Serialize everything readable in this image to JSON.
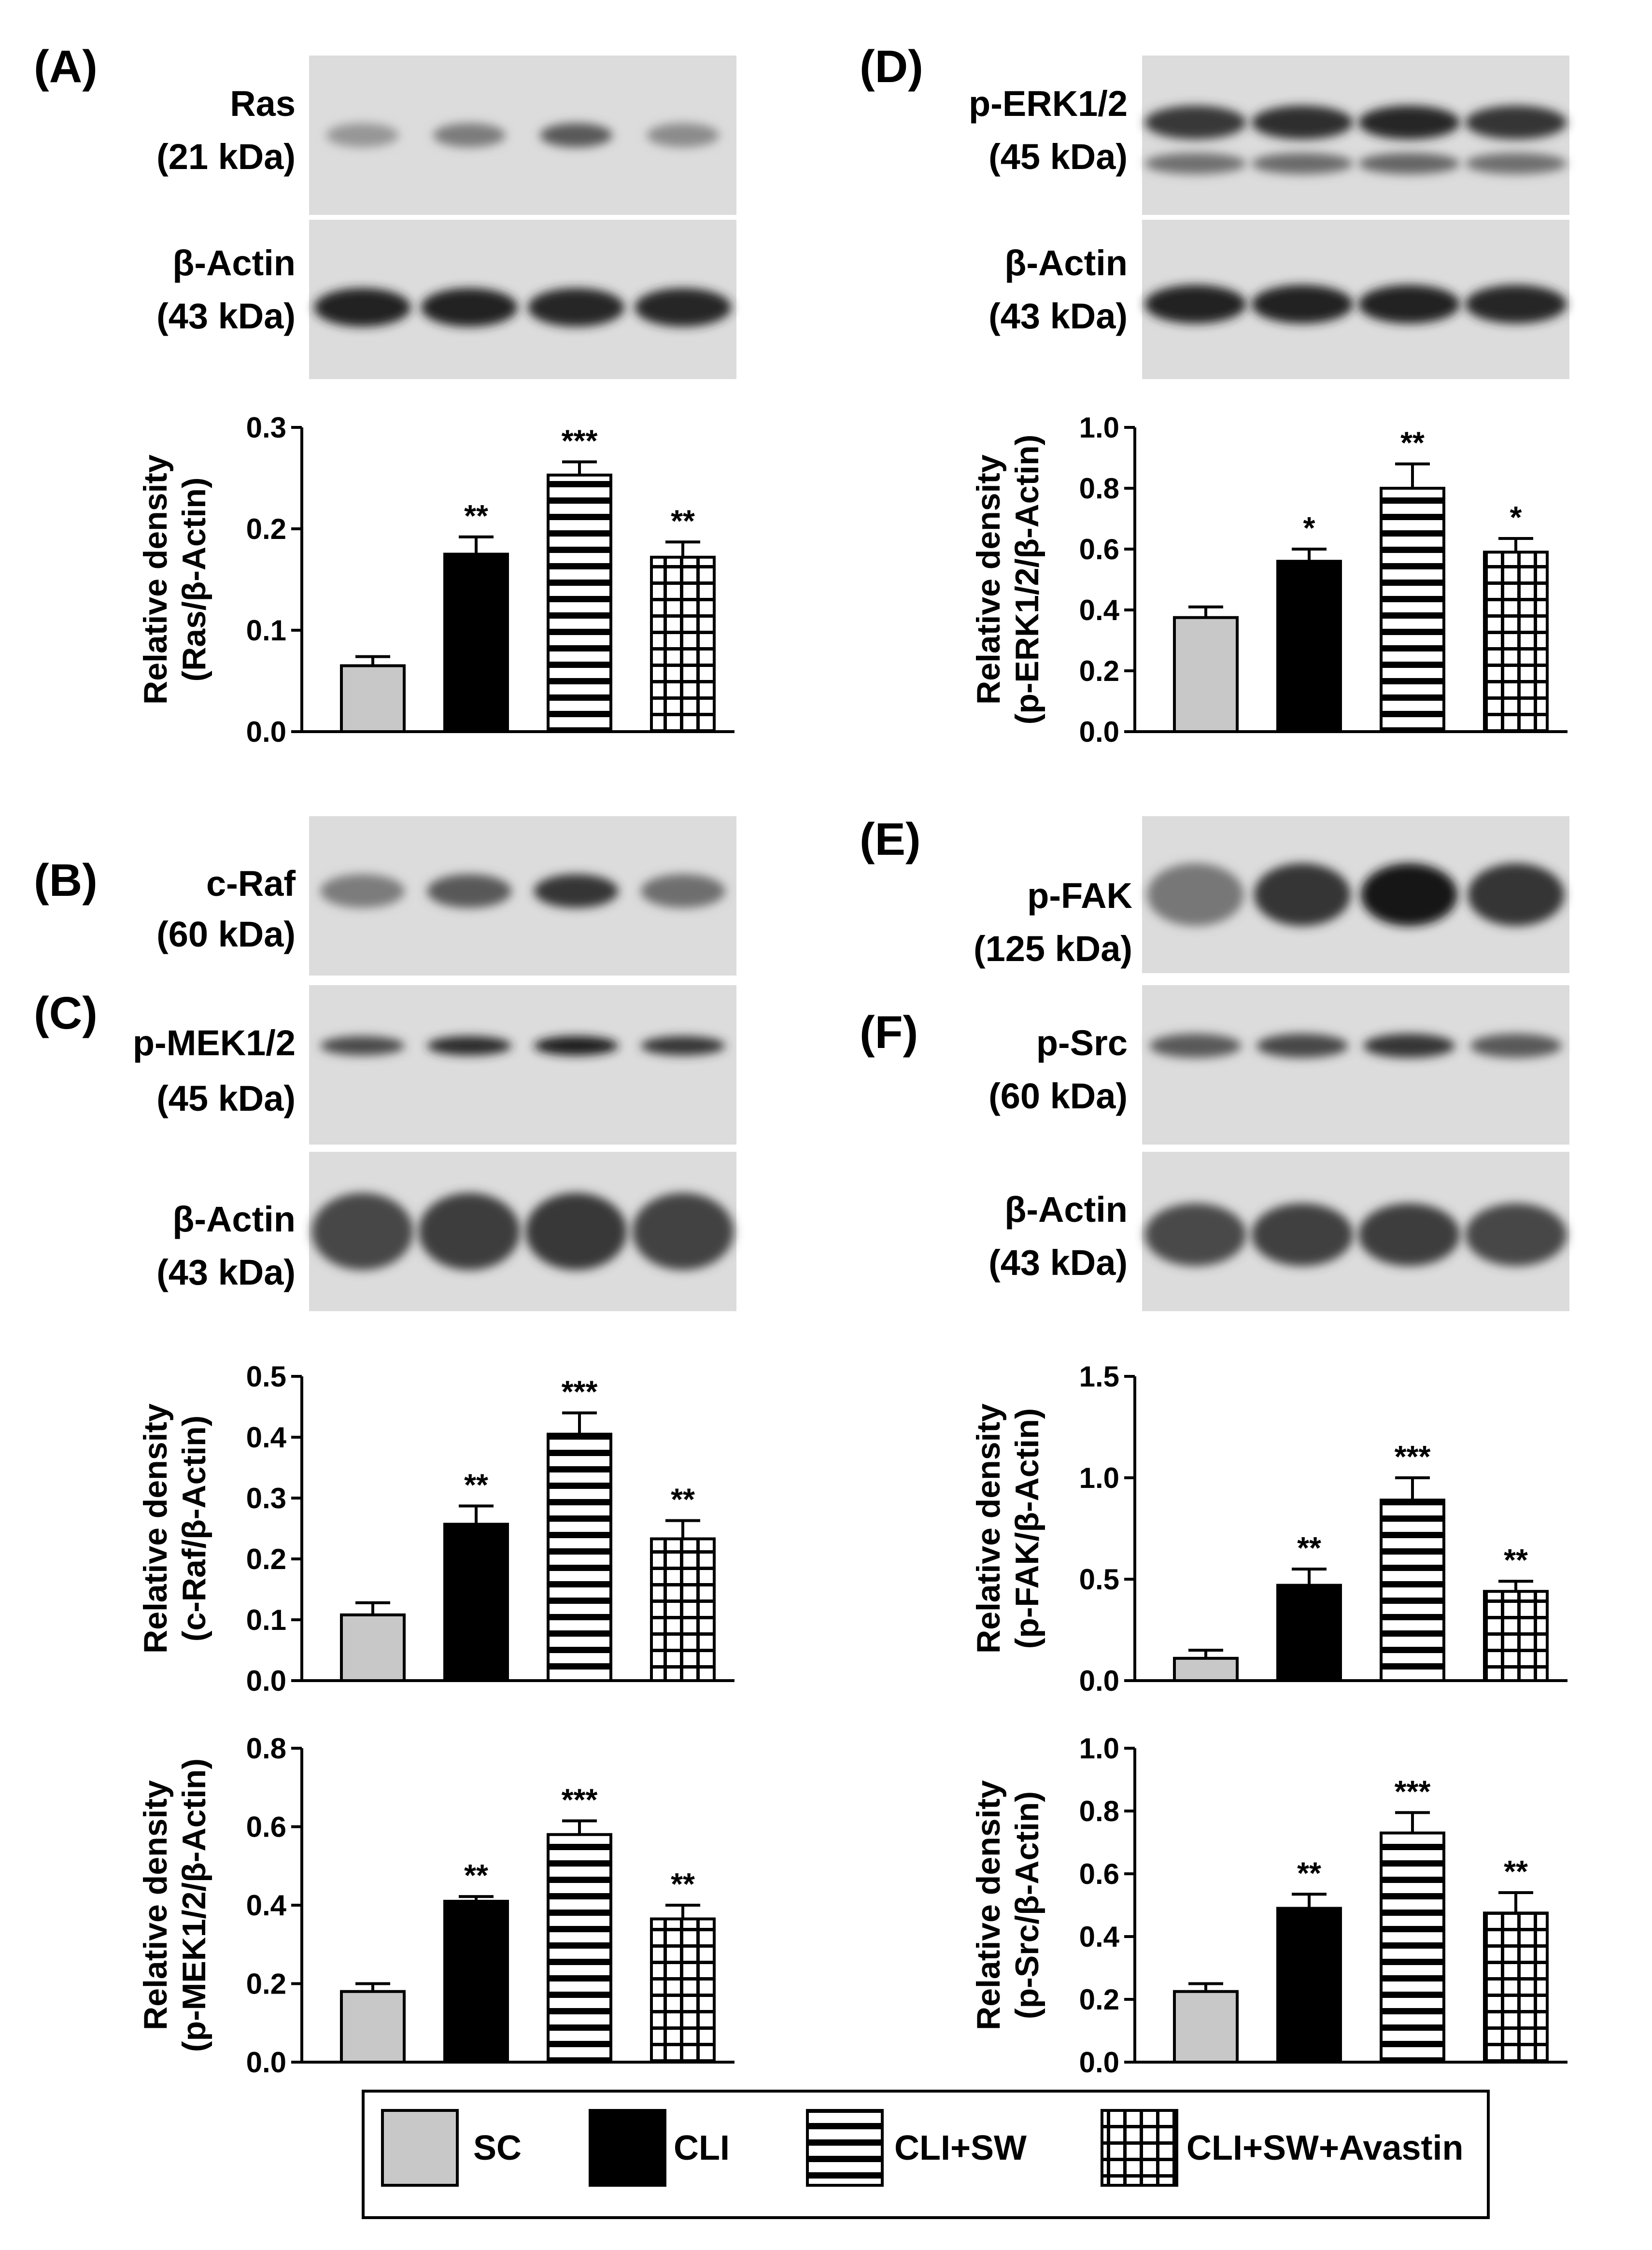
{
  "colors": {
    "SC": "#c8c8c8",
    "CLI": "#000000",
    "pattern_stroke": "#000000",
    "blot_background": "#dcdcdc"
  },
  "panels": [
    {
      "letter": "(A)"
    },
    {
      "letter": "(B)"
    },
    {
      "letter": "(C)"
    },
    {
      "letter": "(D)"
    },
    {
      "letter": "(E)"
    },
    {
      "letter": "(F)"
    }
  ],
  "blots": [
    {
      "line1": "Ras",
      "line2": "(21 kDa)"
    },
    {
      "line1": "β-Actin",
      "line2": "(43 kDa)"
    },
    {
      "line1": "c-Raf",
      "line2": "(60 kDa)"
    },
    {
      "line1": "p-MEK1/2",
      "line2": "(45 kDa)"
    },
    {
      "line1": "β-Actin",
      "line2": "(43 kDa)"
    },
    {
      "line1": "p-ERK1/2",
      "line2": "(45 kDa)"
    },
    {
      "line1": "β-Actin",
      "line2": "(43 kDa)"
    },
    {
      "line1": "p-FAK",
      "line2": "(125 kDa)"
    },
    {
      "line1": "p-Src",
      "line2": "(60 kDa)"
    },
    {
      "line1": "β-Actin",
      "line2": "(43 kDa)"
    }
  ],
  "legend": {
    "items": [
      {
        "label": "SC",
        "pattern": "solid-gray"
      },
      {
        "label": "CLI",
        "pattern": "solid-black"
      },
      {
        "label": "CLI+SW",
        "pattern": "horizontal-stripes"
      },
      {
        "label": "CLI+SW+Avastin",
        "pattern": "grid"
      }
    ]
  },
  "chart_data": [
    {
      "type": "bar",
      "panel": "(A)",
      "categories": [
        "SC",
        "CLI",
        "CLI+SW",
        "CLI+SW+Avastin"
      ],
      "values": [
        0.065,
        0.175,
        0.253,
        0.172
      ],
      "errors": [
        0.009,
        0.017,
        0.013,
        0.015
      ],
      "significance": [
        "",
        "**",
        "***",
        "**"
      ],
      "ylabel_line1": "Relative density",
      "ylabel_line2": "(Ras/β-Actin)",
      "ylim": [
        0,
        0.3
      ],
      "yticks": [
        "0.0",
        "0.1",
        "0.2",
        "0.3"
      ]
    },
    {
      "type": "bar",
      "panel": "(B)",
      "categories": [
        "SC",
        "CLI",
        "CLI+SW",
        "CLI+SW+Avastin"
      ],
      "values": [
        0.108,
        0.257,
        0.405,
        0.233
      ],
      "errors": [
        0.02,
        0.03,
        0.035,
        0.03
      ],
      "significance": [
        "",
        "**",
        "***",
        "**"
      ],
      "ylabel_line1": "Relative density",
      "ylabel_line2": "(c-Raf/β-Actin)",
      "ylim": [
        0,
        0.5
      ],
      "yticks": [
        "0.0",
        "0.1",
        "0.2",
        "0.3",
        "0.4",
        "0.5"
      ]
    },
    {
      "type": "bar",
      "panel": "(C)",
      "categories": [
        "SC",
        "CLI",
        "CLI+SW",
        "CLI+SW+Avastin"
      ],
      "values": [
        0.18,
        0.41,
        0.58,
        0.365
      ],
      "errors": [
        0.02,
        0.012,
        0.035,
        0.035
      ],
      "significance": [
        "",
        "**",
        "***",
        "**"
      ],
      "ylabel_line1": "Relative density",
      "ylabel_line2": "(p-MEK1/2/β-Actin)",
      "ylim": [
        0,
        0.8
      ],
      "yticks": [
        "0.0",
        "0.2",
        "0.4",
        "0.6",
        "0.8"
      ]
    },
    {
      "type": "bar",
      "panel": "(D)",
      "categories": [
        "SC",
        "CLI",
        "CLI+SW",
        "CLI+SW+Avastin"
      ],
      "values": [
        0.375,
        0.56,
        0.8,
        0.59
      ],
      "errors": [
        0.035,
        0.04,
        0.08,
        0.045
      ],
      "significance": [
        "",
        "*",
        "**",
        "*"
      ],
      "ylabel_line1": "Relative density",
      "ylabel_line2": "(p-ERK1/2/β-Actin)",
      "ylim": [
        0,
        1.0
      ],
      "yticks": [
        "0.0",
        "0.2",
        "0.4",
        "0.6",
        "0.8",
        "1.0"
      ]
    },
    {
      "type": "bar",
      "panel": "(E)",
      "categories": [
        "SC",
        "CLI",
        "CLI+SW",
        "CLI+SW+Avastin"
      ],
      "values": [
        0.11,
        0.47,
        0.89,
        0.44
      ],
      "errors": [
        0.04,
        0.08,
        0.11,
        0.05
      ],
      "significance": [
        "",
        "**",
        "***",
        "**"
      ],
      "ylabel_line1": "Relative density",
      "ylabel_line2": "(p-FAK/β-Actin)",
      "ylim": [
        0,
        1.5
      ],
      "yticks": [
        "0.0",
        "0.5",
        "1.0",
        "1.5"
      ]
    },
    {
      "type": "bar",
      "panel": "(F)",
      "categories": [
        "SC",
        "CLI",
        "CLI+SW",
        "CLI+SW+Avastin"
      ],
      "values": [
        0.225,
        0.49,
        0.73,
        0.475
      ],
      "errors": [
        0.025,
        0.045,
        0.065,
        0.065
      ],
      "significance": [
        "",
        "**",
        "***",
        "**"
      ],
      "ylabel_line1": "Relative density",
      "ylabel_line2": "(p-Src/β-Actin)",
      "ylim": [
        0,
        1.0
      ],
      "yticks": [
        "0.0",
        "0.2",
        "0.4",
        "0.6",
        "0.8",
        "1.0"
      ]
    }
  ]
}
